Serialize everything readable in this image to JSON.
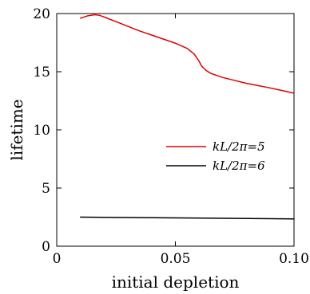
{
  "chart_data": {
    "type": "line",
    "xlabel": "initial depletion",
    "ylabel": "lifetime",
    "xlim": [
      0,
      0.1
    ],
    "ylim": [
      0,
      20
    ],
    "x_ticks": [
      0,
      0.05,
      0.1
    ],
    "x_tick_labels": [
      "0",
      "0.05",
      "0.10"
    ],
    "y_ticks": [
      0,
      5,
      10,
      15,
      20
    ],
    "y_tick_labels": [
      "0",
      "5",
      "10",
      "15",
      "20"
    ],
    "grid": false,
    "legend_position": "right-middle",
    "series": [
      {
        "name": "kL/2π=5",
        "color": "#e00000",
        "x": [
          0.01,
          0.013,
          0.016,
          0.018,
          0.02,
          0.025,
          0.03,
          0.035,
          0.04,
          0.045,
          0.05,
          0.055,
          0.058,
          0.06,
          0.061,
          0.062,
          0.063,
          0.065,
          0.07,
          0.075,
          0.08,
          0.085,
          0.09,
          0.095,
          0.1
        ],
        "y": [
          19.6,
          19.8,
          19.9,
          19.85,
          19.7,
          19.3,
          18.9,
          18.5,
          18.15,
          17.8,
          17.45,
          17.0,
          16.5,
          15.9,
          15.5,
          15.3,
          15.1,
          14.85,
          14.5,
          14.25,
          14.0,
          13.8,
          13.6,
          13.38,
          13.15
        ]
      },
      {
        "name": "kL/2π=6",
        "color": "#000000",
        "x": [
          0.01,
          0.1
        ],
        "y": [
          2.5,
          2.35
        ]
      }
    ]
  }
}
